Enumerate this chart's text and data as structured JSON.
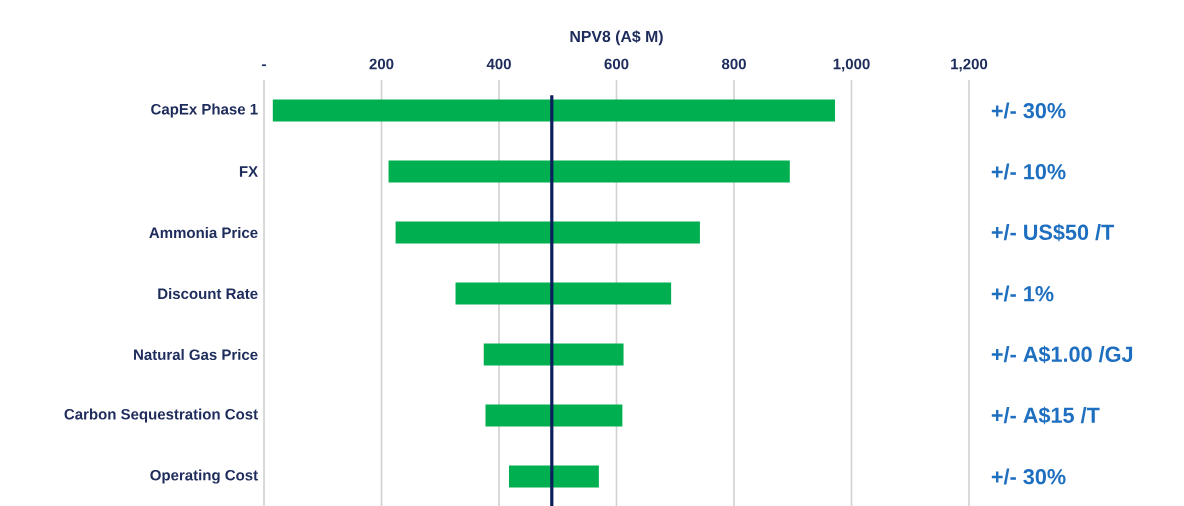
{
  "chart_data": {
    "type": "bar",
    "orientation": "horizontal",
    "xlabel": "NPV8 (A$ M)",
    "categories": [
      "CapEx Phase 1",
      "FX",
      "Ammonia Price",
      "Discount Rate",
      "Natural Gas Price",
      "Carbon Sequestration Cost",
      "Operating Cost"
    ],
    "base": [
      15,
      212,
      224,
      326,
      374,
      377,
      417
    ],
    "values": [
      957,
      683,
      518,
      367,
      238,
      233,
      153
    ],
    "color": "#00b050",
    "xlim": [
      0,
      1200
    ],
    "xticks": [
      {
        "value": 0,
        "label": "-"
      },
      200,
      400,
      600,
      800,
      {
        "value": 1000,
        "label": "1,000"
      },
      {
        "value": 1200,
        "label": "1,200"
      }
    ],
    "grid": "x",
    "ref_lines": [
      {
        "axis": "x",
        "value": 490,
        "color": "#0a1f5c"
      }
    ],
    "annotations": [
      "+/- 30%",
      "+/- 10%",
      "+/- US$50 /T",
      "+/- 1%",
      "+/- A$1.00 /GJ",
      "+/- A$15 /T",
      "+/- 30%"
    ]
  }
}
